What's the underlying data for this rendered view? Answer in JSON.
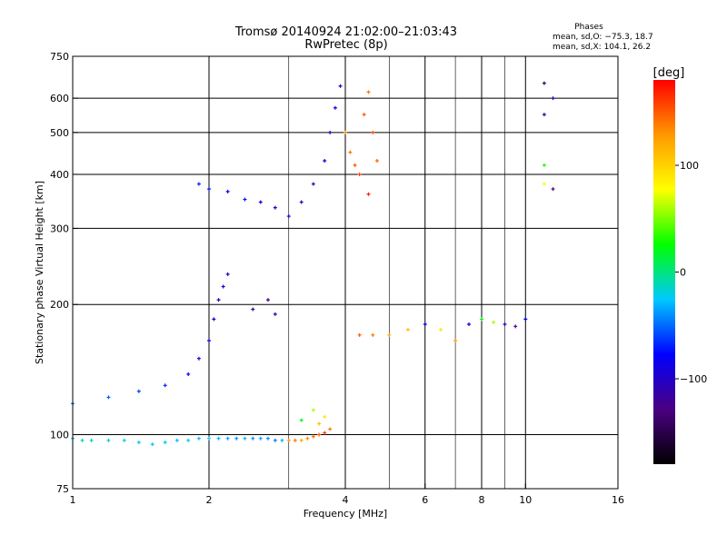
{
  "chart_data": {
    "type": "scatter",
    "title": "Tromsø 20140924 21:02:00–21:03:43",
    "subtitle": "RwPretec (8p)",
    "xlabel": "Frequency [MHz]",
    "ylabel": "Stationary phase Virtual Height [km]",
    "x_scale": "log",
    "y_scale": "log",
    "xlim": [
      1,
      16
    ],
    "ylim": [
      75,
      750
    ],
    "x_ticks": [
      1,
      2,
      4,
      6,
      8,
      10,
      16
    ],
    "x_tick_labels": [
      "1",
      "2",
      "4",
      "6",
      "8",
      "10",
      "16"
    ],
    "x_minor_ticks": [
      3,
      5,
      7,
      9
    ],
    "y_ticks": [
      75,
      100,
      200,
      300,
      400,
      500,
      600,
      750
    ],
    "y_tick_labels": [
      "75",
      "100",
      "200",
      "300",
      "400",
      "500",
      "600",
      "750"
    ],
    "grid": true,
    "phase_stats": {
      "heading": "Phases",
      "line_o": "mean, sd,O: −75.3, 18.7",
      "line_x": "mean, sd,X: 104.1, 26.2"
    },
    "colorbar": {
      "label": "[deg]",
      "range": [
        -180,
        180
      ],
      "ticks": [
        100,
        0,
        -100
      ],
      "tick_labels": [
        "100",
        "0",
        "−100"
      ],
      "colors": [
        "#000000",
        "#4b0082",
        "#0000ff",
        "#00c8ff",
        "#00ff00",
        "#ffff00",
        "#ff9900",
        "#ff0000"
      ]
    },
    "series": [
      {
        "kind": "E-layer trace",
        "points": [
          [
            1.0,
            98,
            -20
          ],
          [
            1.05,
            97,
            -10
          ],
          [
            1.1,
            97,
            -15
          ],
          [
            1.2,
            97,
            -20
          ],
          [
            1.3,
            97,
            -15
          ],
          [
            1.4,
            96,
            -20
          ],
          [
            1.5,
            95,
            -25
          ],
          [
            1.6,
            96,
            -20
          ],
          [
            1.7,
            97,
            -30
          ],
          [
            1.8,
            97,
            -25
          ],
          [
            1.9,
            98,
            -30
          ],
          [
            2.0,
            98,
            -25
          ],
          [
            2.1,
            98,
            -30
          ],
          [
            2.2,
            98,
            -35
          ],
          [
            2.3,
            98,
            -40
          ],
          [
            2.4,
            98,
            -30
          ],
          [
            2.5,
            98,
            -40
          ],
          [
            2.6,
            98,
            -35
          ],
          [
            2.7,
            98,
            -40
          ],
          [
            2.8,
            97,
            -45
          ],
          [
            2.9,
            97,
            -30
          ]
        ]
      },
      {
        "kind": "E-layer high-phase",
        "points": [
          [
            3.0,
            97,
            130
          ],
          [
            3.1,
            97,
            140
          ],
          [
            3.2,
            97,
            120
          ],
          [
            3.3,
            98,
            135
          ],
          [
            3.4,
            99,
            140
          ],
          [
            3.5,
            100,
            150
          ],
          [
            3.6,
            101,
            160
          ],
          [
            3.7,
            103,
            140
          ],
          [
            3.5,
            106,
            110
          ],
          [
            3.6,
            110,
            90
          ],
          [
            3.4,
            114,
            60
          ],
          [
            3.2,
            108,
            20
          ]
        ]
      },
      {
        "kind": "F1 cusp",
        "points": [
          [
            1.0,
            118,
            -50
          ],
          [
            1.2,
            122,
            -55
          ],
          [
            1.4,
            126,
            -60
          ],
          [
            1.6,
            130,
            -70
          ],
          [
            1.8,
            138,
            -80
          ],
          [
            1.9,
            150,
            -85
          ],
          [
            2.0,
            165,
            -90
          ],
          [
            2.05,
            185,
            -95
          ],
          [
            2.1,
            205,
            -100
          ],
          [
            2.15,
            220,
            -105
          ],
          [
            2.2,
            235,
            -110
          ],
          [
            2.5,
            195,
            -115
          ],
          [
            2.7,
            205,
            -120
          ],
          [
            2.8,
            190,
            -110
          ]
        ]
      },
      {
        "kind": "F2 trace",
        "points": [
          [
            1.9,
            380,
            -70
          ],
          [
            2.0,
            370,
            -75
          ],
          [
            2.2,
            365,
            -80
          ],
          [
            2.4,
            350,
            -75
          ],
          [
            2.6,
            345,
            -85
          ],
          [
            2.8,
            335,
            -95
          ],
          [
            3.0,
            320,
            -100
          ],
          [
            3.2,
            345,
            -105
          ],
          [
            3.4,
            380,
            -110
          ],
          [
            3.6,
            430,
            -100
          ],
          [
            3.7,
            500,
            -95
          ],
          [
            3.8,
            570,
            -90
          ],
          [
            3.9,
            640,
            -100
          ]
        ]
      },
      {
        "kind": "F2 X-mode",
        "points": [
          [
            4.0,
            500,
            130
          ],
          [
            4.1,
            450,
            140
          ],
          [
            4.2,
            420,
            150
          ],
          [
            4.3,
            400,
            160
          ],
          [
            4.4,
            550,
            150
          ],
          [
            4.5,
            620,
            140
          ],
          [
            4.6,
            500,
            155
          ],
          [
            4.7,
            430,
            145
          ],
          [
            4.5,
            360,
            170
          ]
        ]
      },
      {
        "kind": "scattered high-frequency",
        "points": [
          [
            4.3,
            170,
            150
          ],
          [
            4.6,
            170,
            140
          ],
          [
            5.0,
            170,
            120
          ],
          [
            5.5,
            175,
            110
          ],
          [
            6.0,
            180,
            -80
          ],
          [
            6.5,
            175,
            90
          ],
          [
            7.0,
            165,
            130
          ],
          [
            7.5,
            180,
            -90
          ],
          [
            8.0,
            185,
            20
          ],
          [
            8.5,
            182,
            60
          ],
          [
            9.0,
            180,
            -100
          ],
          [
            9.5,
            178,
            -120
          ],
          [
            10.0,
            185,
            -80
          ],
          [
            11.0,
            650,
            -150
          ],
          [
            11.0,
            550,
            -120
          ],
          [
            11.0,
            420,
            30
          ],
          [
            11.0,
            380,
            80
          ],
          [
            11.5,
            600,
            -110
          ],
          [
            11.5,
            370,
            -130
          ]
        ]
      }
    ]
  }
}
